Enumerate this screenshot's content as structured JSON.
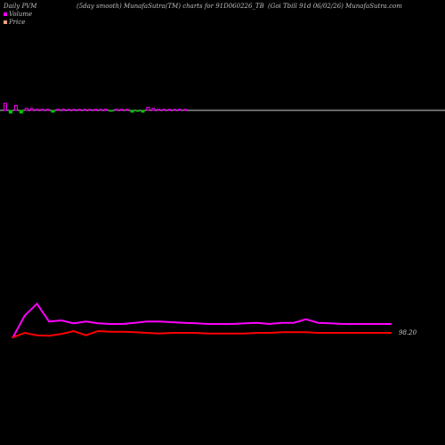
{
  "header": {
    "left": "Daily PVM",
    "center": "(5day smooth) MunafaSutra(TM) charts for 91D060226_TB",
    "right": "(Goi  Tbill 91d 06/02/26) MunafaSutra.com"
  },
  "legend": {
    "volume": {
      "label": "Volume",
      "color": "#ff00ff"
    },
    "price": {
      "label": "Price",
      "color": "#ffa07a"
    }
  },
  "chart_data": [
    {
      "type": "bar",
      "name": "volume",
      "baseline_color": "#cccccc",
      "up_color": "#ff00ff",
      "down_color": "#00cc00",
      "values": [
        7,
        -3,
        5,
        -3,
        2,
        2,
        1,
        1,
        1,
        -2,
        1,
        1,
        0.5,
        0.5,
        0.5,
        0.5,
        0.5,
        0.5,
        0.5,
        1,
        -1,
        1,
        0.5,
        0.5,
        -2,
        -1,
        -2,
        3,
        2,
        1,
        1,
        0.5,
        0.5,
        0.5,
        0.5
      ],
      "ylim": [
        -5,
        8
      ]
    },
    {
      "type": "line",
      "label": "98.20",
      "series": [
        {
          "color": "#ff00ff",
          "values": [
            100,
            62,
            42,
            72,
            70,
            75,
            72,
            75,
            76,
            76,
            74,
            72,
            72,
            73,
            74,
            75,
            76,
            76,
            76,
            75,
            74,
            76,
            74,
            74,
            68,
            74,
            75,
            76,
            76,
            76,
            76,
            76
          ]
        },
        {
          "color": "#ff0000",
          "values": [
            99,
            91,
            95,
            96,
            93,
            88,
            95,
            88,
            89,
            89,
            90,
            91,
            92,
            91,
            91,
            91,
            92,
            92,
            92,
            92,
            91,
            91,
            90,
            90,
            90,
            91,
            91,
            91,
            91,
            91,
            91,
            91
          ]
        }
      ]
    }
  ]
}
